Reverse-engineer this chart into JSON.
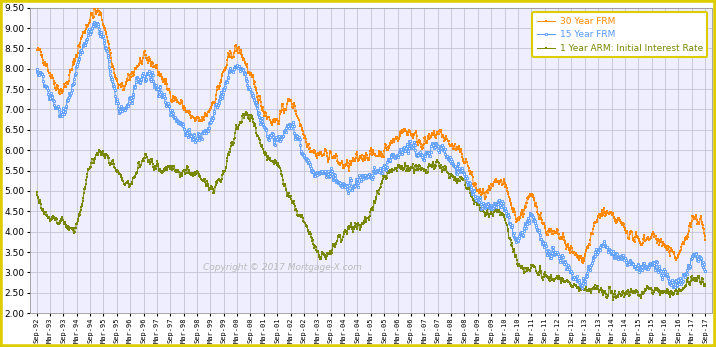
{
  "ylim": [
    2.0,
    9.5
  ],
  "yticks": [
    2.0,
    2.5,
    3.0,
    3.5,
    4.0,
    4.5,
    5.0,
    5.5,
    6.0,
    6.5,
    7.0,
    7.5,
    8.0,
    8.5,
    9.0,
    9.5
  ],
  "bg_color": "#ffffff",
  "plot_bg": "#eeeeff",
  "border_color": "#ddcc00",
  "grid_color": "#bbbbcc",
  "legend_labels": [
    "30 Year FRM",
    "15 Year FRM",
    "1 Year ARM: Initial Interest Rate"
  ],
  "color_30yr": "#ff8800",
  "color_15yr": "#5599ff",
  "color_arm": "#778800",
  "copyright_text": "Copyright © 2017 Mortgage-X.com",
  "xtick_labels": [
    "Sep-92",
    "Mar-93",
    "Sep-93",
    "Mar-94",
    "Sep-94",
    "Mar-95",
    "Sep-95",
    "Mar-96",
    "Sep-96",
    "Mar-97",
    "Sep-97",
    "Mar-98",
    "Sep-98",
    "Mar-99",
    "Sep-99",
    "Mar-00",
    "Sep-00",
    "Mar-01",
    "Sep-01",
    "Mar-02",
    "Sep-02",
    "Mar-03",
    "Sep-03",
    "Mar-04",
    "Sep-04",
    "Mar-05",
    "Sep-05",
    "Mar-06",
    "Sep-06",
    "Mar-07",
    "Sep-07",
    "Mar-08",
    "Sep-08",
    "Mar-09",
    "Sep-09",
    "Mar-10",
    "Sep-10",
    "Mar-11",
    "Sep-11",
    "Mar-12",
    "Sep-12",
    "Mar-13",
    "Sep-13",
    "Mar-14",
    "Sep-14",
    "Mar-15",
    "Sep-15",
    "Mar-16",
    "Sep-16",
    "Mar-17",
    "Sep-17"
  ],
  "knots_30yr": [
    8.42,
    7.92,
    7.49,
    8.38,
    9.22,
    9.15,
    7.68,
    7.8,
    8.21,
    8.0,
    7.41,
    7.06,
    6.71,
    7.04,
    7.91,
    8.47,
    7.82,
    7.01,
    6.75,
    7.18,
    6.4,
    5.91,
    5.89,
    5.62,
    5.78,
    5.9,
    5.98,
    6.35,
    6.44,
    6.18,
    6.42,
    6.13,
    5.79,
    5.01,
    5.04,
    5.12,
    4.35,
    4.84,
    4.11,
    3.9,
    3.52,
    3.45,
    4.35,
    4.35,
    4.1,
    3.77,
    3.9,
    3.62,
    3.47,
    4.21,
    3.83
  ],
  "knots_15yr": [
    7.92,
    7.35,
    7.0,
    8.0,
    8.9,
    8.72,
    7.15,
    7.25,
    7.8,
    7.58,
    7.0,
    6.57,
    6.28,
    6.65,
    7.51,
    8.05,
    7.45,
    6.57,
    6.25,
    6.62,
    5.9,
    5.42,
    5.42,
    5.1,
    5.25,
    5.38,
    5.58,
    5.95,
    6.08,
    5.87,
    6.13,
    5.72,
    5.38,
    4.78,
    4.63,
    4.56,
    3.82,
    4.39,
    3.58,
    3.38,
    2.98,
    2.84,
    3.65,
    3.46,
    3.34,
    3.08,
    3.2,
    2.9,
    2.75,
    3.28,
    3.05
  ],
  "knots_arm": [
    5.05,
    4.29,
    4.24,
    4.19,
    5.56,
    5.86,
    5.52,
    5.22,
    5.78,
    5.55,
    5.59,
    5.48,
    5.39,
    5.08,
    5.49,
    6.53,
    6.85,
    5.98,
    5.62,
    4.78,
    4.26,
    3.55,
    3.55,
    3.96,
    4.13,
    4.46,
    5.32,
    5.55,
    5.55,
    5.56,
    5.64,
    5.35,
    5.18,
    4.66,
    4.48,
    4.32,
    3.19,
    3.12,
    2.88,
    2.85,
    2.72,
    2.56,
    2.55,
    2.46,
    2.52,
    2.52,
    2.62,
    2.53,
    2.55,
    2.84,
    2.61
  ]
}
